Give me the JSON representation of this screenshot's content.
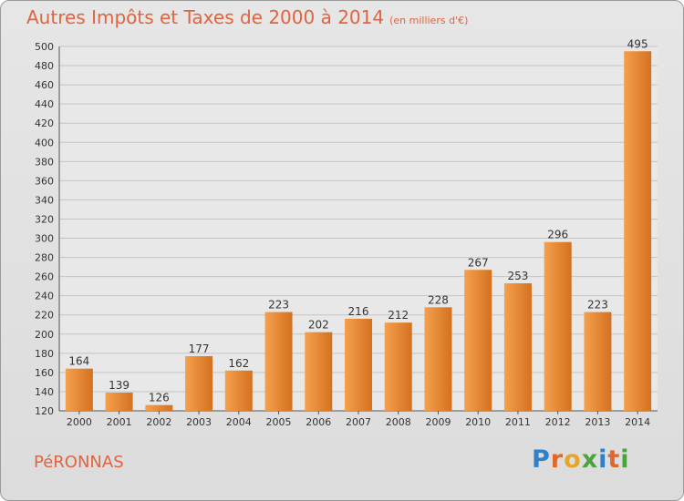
{
  "header": {
    "title": "Autres Impôts et Taxes de 2000 à 2014",
    "unit": "(en milliers d'€)"
  },
  "footer": {
    "town": "PéRONNAS",
    "logo": "Proxiti",
    "logo_colors": [
      "#2f7fc9",
      "#e3672a",
      "#e3a62a",
      "#4aa43c",
      "#2f7fc9",
      "#e3672a",
      "#4aa43c"
    ]
  },
  "chart_data": {
    "type": "bar",
    "categories": [
      "2000",
      "2001",
      "2002",
      "2003",
      "2004",
      "2005",
      "2006",
      "2007",
      "2008",
      "2009",
      "2010",
      "2011",
      "2012",
      "2013",
      "2014"
    ],
    "values": [
      164,
      139,
      126,
      177,
      162,
      223,
      202,
      216,
      212,
      228,
      267,
      253,
      296,
      223,
      495
    ],
    "ylim": [
      120,
      500
    ],
    "yticks": [
      120,
      140,
      160,
      180,
      200,
      220,
      240,
      260,
      280,
      300,
      320,
      340,
      360,
      380,
      400,
      420,
      440,
      460,
      480,
      500
    ],
    "grid": true,
    "bar_color_light": "#f5a04d",
    "bar_color_dark": "#d4711f"
  }
}
